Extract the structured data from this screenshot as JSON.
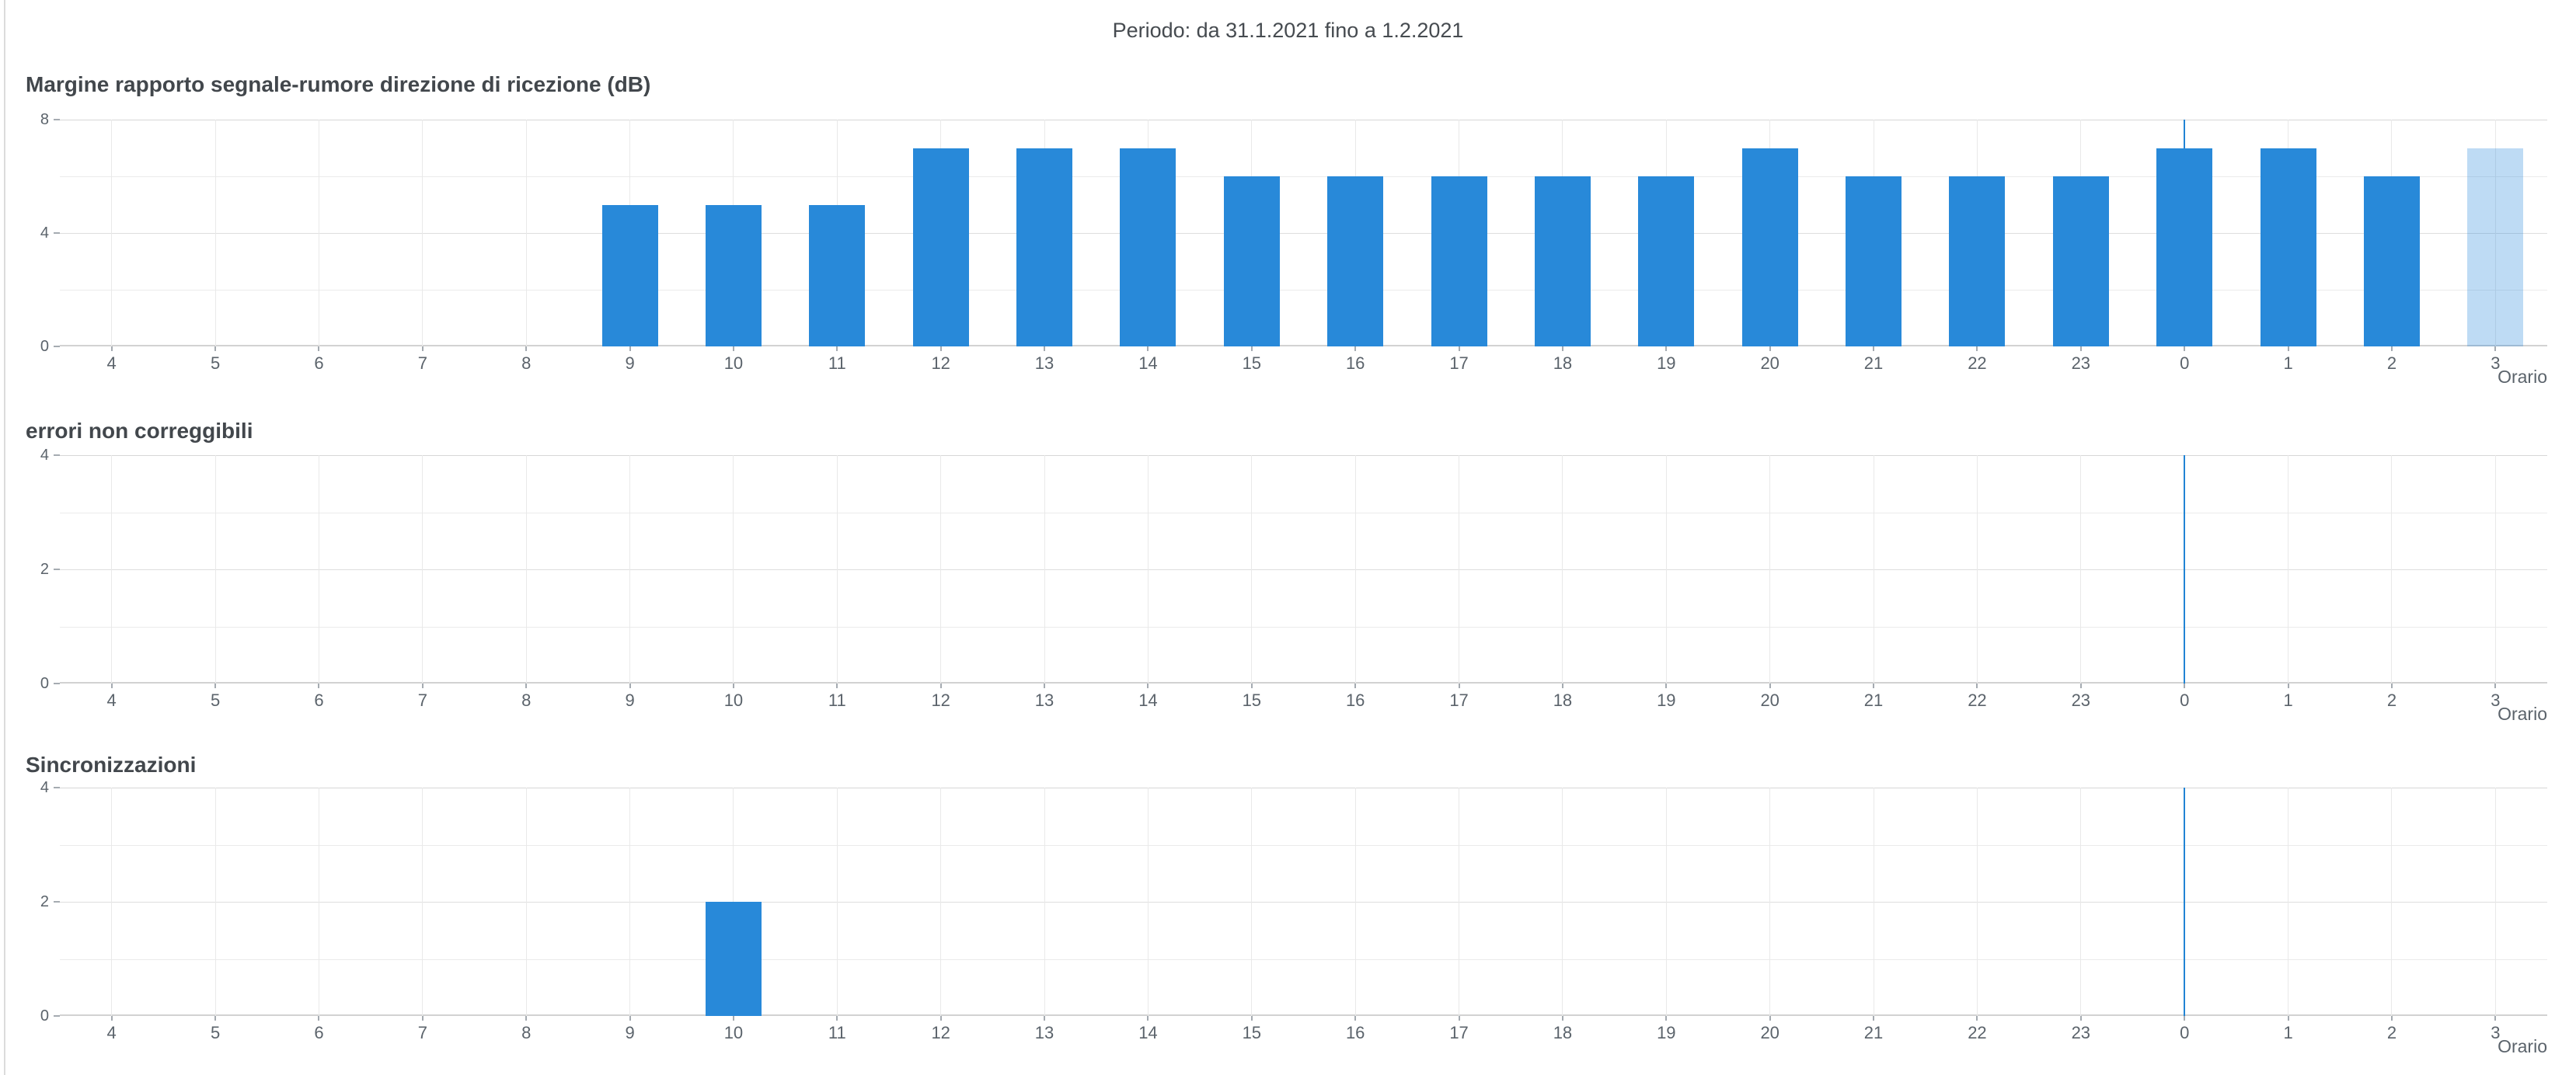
{
  "header": {
    "period_label": "Periodo: da 31.1.2021 fino a 1.2.2021"
  },
  "colors": {
    "bar": "#2889d9",
    "bar_muted": "rgba(40, 137, 217, 0.3)",
    "day_separator_line": "#2184d4",
    "grid_minor": "#ebebeb",
    "grid_major": "#dedede",
    "axis_line": "#d2d2d2",
    "title_text": "#42474c",
    "axis_text": "#5b636b"
  },
  "chart_data": [
    {
      "type": "bar",
      "title": "Margine rapporto segnale-rumore direzione di ricezione (dB)",
      "categories": [
        "4",
        "5",
        "6",
        "7",
        "8",
        "9",
        "10",
        "11",
        "12",
        "13",
        "14",
        "15",
        "16",
        "17",
        "18",
        "19",
        "20",
        "21",
        "22",
        "23",
        "0",
        "1",
        "2",
        "3"
      ],
      "values": [
        null,
        null,
        null,
        null,
        null,
        5,
        5,
        5,
        7,
        7,
        7,
        6,
        6,
        6,
        6,
        6,
        7,
        6,
        6,
        6,
        7,
        7,
        6,
        7
      ],
      "muted_bar_index": 23,
      "muted_bar_category": "3",
      "ylim": [
        0,
        8
      ],
      "grid_step": 2,
      "ytick_labels": [
        "0",
        "4",
        "8"
      ],
      "ytick_values": [
        0,
        4,
        8
      ],
      "xlabel": "Orario",
      "ylabel": "",
      "day_line_category": "0",
      "day_line_index": 20,
      "legend": "none",
      "grid": "on"
    },
    {
      "type": "bar",
      "title": "errori non correggibili",
      "categories": [
        "4",
        "5",
        "6",
        "7",
        "8",
        "9",
        "10",
        "11",
        "12",
        "13",
        "14",
        "15",
        "16",
        "17",
        "18",
        "19",
        "20",
        "21",
        "22",
        "23",
        "0",
        "1",
        "2",
        "3"
      ],
      "values": [
        null,
        null,
        null,
        null,
        null,
        null,
        null,
        null,
        null,
        null,
        null,
        null,
        null,
        null,
        null,
        null,
        null,
        null,
        null,
        null,
        null,
        null,
        null,
        null
      ],
      "muted_bar_index": null,
      "ylim": [
        0,
        4
      ],
      "grid_step": 1,
      "ytick_labels": [
        "0",
        "2",
        "4"
      ],
      "ytick_values": [
        0,
        2,
        4
      ],
      "xlabel": "Orario",
      "ylabel": "",
      "day_line_category": "0",
      "day_line_index": 20,
      "legend": "none",
      "grid": "on"
    },
    {
      "type": "bar",
      "title": "Sincronizzazioni",
      "categories": [
        "4",
        "5",
        "6",
        "7",
        "8",
        "9",
        "10",
        "11",
        "12",
        "13",
        "14",
        "15",
        "16",
        "17",
        "18",
        "19",
        "20",
        "21",
        "22",
        "23",
        "0",
        "1",
        "2",
        "3"
      ],
      "values": [
        null,
        null,
        null,
        null,
        null,
        null,
        2,
        null,
        null,
        null,
        null,
        null,
        null,
        null,
        null,
        null,
        null,
        null,
        null,
        null,
        null,
        null,
        null,
        null
      ],
      "muted_bar_index": null,
      "ylim": [
        0,
        4
      ],
      "grid_step": 1,
      "ytick_labels": [
        "0",
        "2",
        "4"
      ],
      "ytick_values": [
        0,
        2,
        4
      ],
      "xlabel": "Orario",
      "ylabel": "",
      "day_line_category": "0",
      "day_line_index": 20,
      "legend": "none",
      "grid": "on"
    }
  ]
}
